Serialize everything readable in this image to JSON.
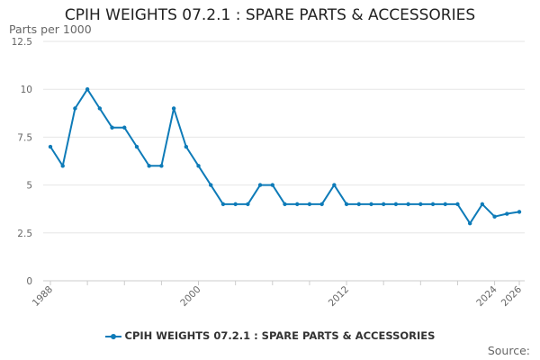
{
  "chart_data": {
    "type": "line",
    "title": "CPIH WEIGHTS 07.2.1 : SPARE PARTS & ACCESSORIES",
    "ylabel": "Parts per 1000",
    "xlabel": "",
    "ylim": [
      0,
      12.5
    ],
    "yticks": [
      0,
      2.5,
      5,
      7.5,
      10,
      12.5
    ],
    "ytick_labels": [
      "0",
      "2.5",
      "5",
      "7.5",
      "10",
      "12.5"
    ],
    "xlim": [
      1988,
      2026
    ],
    "xticks": [
      1988,
      2000,
      2012,
      2024,
      2026
    ],
    "xtick_labels": [
      "1988",
      "2000",
      "2012",
      "2024",
      "2026"
    ],
    "grid": true,
    "legend": "bottom",
    "color": "#0e7bb8",
    "series": [
      {
        "name": "CPIH WEIGHTS 07.2.1 : SPARE PARTS & ACCESSORIES",
        "x": [
          1988,
          1989,
          1990,
          1991,
          1992,
          1993,
          1994,
          1995,
          1996,
          1997,
          1998,
          1999,
          2000,
          2001,
          2002,
          2003,
          2004,
          2005,
          2006,
          2007,
          2008,
          2009,
          2010,
          2011,
          2012,
          2013,
          2014,
          2015,
          2016,
          2017,
          2018,
          2019,
          2020,
          2021,
          2022,
          2023,
          2024,
          2025,
          2026
        ],
        "values": [
          7,
          6,
          9,
          10,
          9,
          8,
          8,
          7,
          6,
          6,
          9,
          7,
          6,
          5,
          4,
          4,
          4,
          5,
          5,
          4,
          4,
          4,
          4,
          5,
          4,
          4,
          4,
          4,
          4,
          4,
          4,
          4,
          4,
          4,
          3,
          4,
          3.35,
          3.5,
          3.6
        ]
      }
    ]
  },
  "footer": {
    "source": "Source:"
  }
}
